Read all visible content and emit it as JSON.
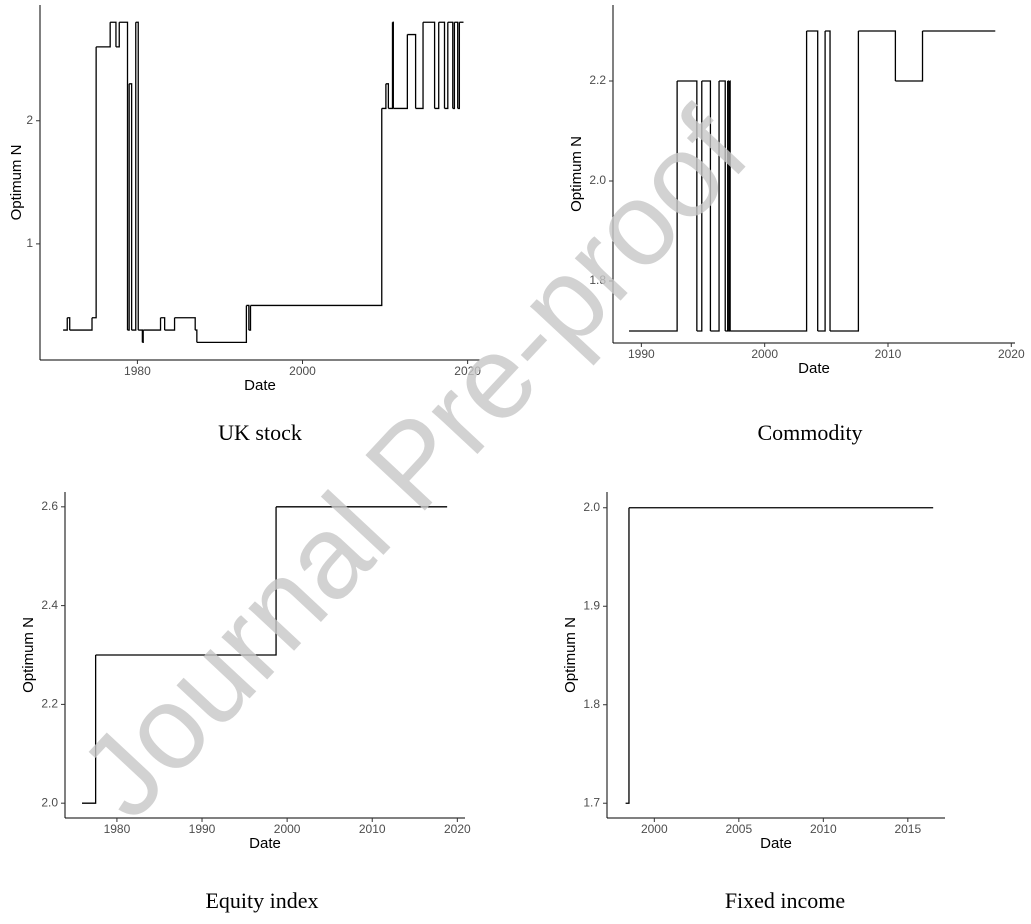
{
  "watermark": "Journal Pre-proof",
  "chart_data": [
    {
      "type": "step",
      "caption": "UK stock",
      "x_label": "Date",
      "y_label": "Optimum N",
      "x": [
        1971.0,
        1971.5,
        1971.8,
        1974.5,
        1975.0,
        1976.7,
        1977.4,
        1977.8,
        1978.8,
        1979.0,
        1979.3,
        1979.8,
        1980.1,
        1980.6,
        1980.7,
        1982.8,
        1983.3,
        1984.5,
        1987.0,
        1987.2,
        1993.2,
        1993.5,
        1993.7,
        2009.6,
        2010.1,
        2010.4,
        2010.9,
        2011.0,
        2012.7,
        2013.7,
        2014.6,
        2016.0,
        2016.5,
        2017.2,
        2017.6,
        2018.2,
        2018.4,
        2018.8,
        2019.0,
        2019.5
      ],
      "values": [
        0.3,
        0.4,
        0.3,
        0.4,
        2.6,
        2.8,
        2.6,
        2.8,
        0.3,
        2.3,
        0.3,
        2.8,
        0.3,
        0.2,
        0.3,
        0.4,
        0.3,
        0.4,
        0.3,
        0.2,
        0.5,
        0.3,
        0.5,
        2.1,
        2.3,
        2.1,
        2.8,
        2.1,
        2.7,
        2.1,
        2.8,
        2.1,
        2.8,
        2.1,
        2.8,
        2.1,
        2.8,
        2.1,
        2.8,
        2.8
      ],
      "color": "#000000",
      "xlim": [
        1968.2,
        2021.5
      ],
      "xticks": [
        1980,
        2000,
        2020
      ],
      "ylim": [
        0.057,
        2.94
      ],
      "yticks": [
        1,
        2
      ]
    },
    {
      "type": "step",
      "caption": "Commodity",
      "x_label": "Date",
      "y_label": "Optimum N",
      "x": [
        1989.0,
        1992.9,
        1994.5,
        1994.9,
        1995.6,
        1996.3,
        1996.8,
        1997.0,
        1997.05,
        1997.15,
        1997.2,
        2003.4,
        2004.3,
        2004.9,
        2005.3,
        2007.6,
        2010.6,
        2012.8,
        2018.7
      ],
      "values": [
        1.7,
        2.2,
        1.7,
        2.2,
        1.7,
        2.2,
        1.7,
        2.2,
        1.7,
        2.2,
        1.7,
        2.3,
        1.7,
        2.3,
        1.7,
        2.3,
        2.2,
        2.3,
        2.3
      ],
      "color": "#000000",
      "xlim": [
        1987.7,
        2020.3
      ],
      "xticks": [
        1990,
        2000,
        2010,
        2020
      ],
      "ylim": [
        1.676,
        2.352
      ],
      "yticks": [
        1.8,
        {
          "value": 2,
          "label": "2.0"
        },
        2.2
      ]
    },
    {
      "type": "step",
      "caption": "Equity index",
      "x_label": "Date",
      "y_label": "Optimum N",
      "x": [
        1975.9,
        1977.5,
        1998.7,
        2018.8
      ],
      "values": [
        2,
        2.3,
        2.6,
        2.6
      ],
      "color": "#000000",
      "xlim": [
        1973.9,
        2020.9
      ],
      "xticks": [
        1980,
        1990,
        2000,
        2010,
        2020
      ],
      "ylim": [
        1.97,
        2.63
      ],
      "yticks": [
        {
          "value": 2,
          "label": "2.0"
        },
        2.2,
        2.4,
        2.6
      ]
    },
    {
      "type": "step",
      "caption": "Fixed income",
      "x_label": "Date",
      "y_label": "Optimum N",
      "x": [
        1998.3,
        1998.5,
        2016.5
      ],
      "values": [
        1.7,
        2,
        2
      ],
      "color": "#000000",
      "xlim": [
        1997.2,
        2017.2
      ],
      "xticks": [
        2000,
        2005,
        2010,
        2015
      ],
      "ylim": [
        1.685,
        2.016
      ],
      "yticks": [
        1.7,
        1.8,
        1.9,
        {
          "value": 2,
          "label": "2.0"
        }
      ]
    }
  ]
}
